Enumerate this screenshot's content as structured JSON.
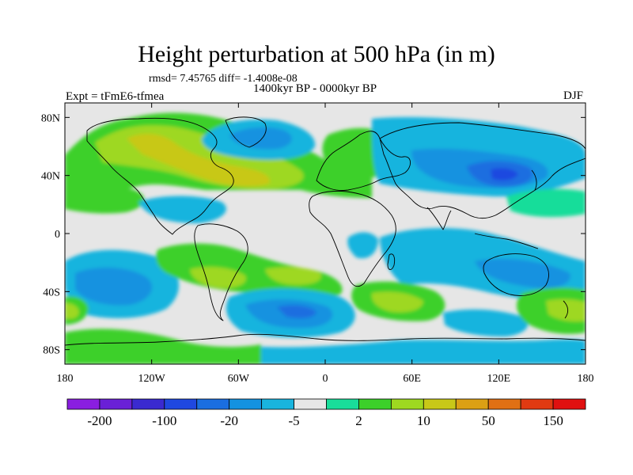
{
  "title": "Height perturbation at 500 hPa (in m)",
  "stats": "rmsd= 7.45765  diff= -1.4008e-08",
  "period": "1400kyr BP - 0000kyr BP",
  "experiment": "Expt = tFmE6-tfmea",
  "season": "DJF",
  "lat_labels": [
    "80N",
    "40N",
    "0",
    "40S",
    "80S"
  ],
  "lon_labels": [
    "180",
    "120W",
    "60W",
    "0",
    "60E",
    "120E",
    "180"
  ],
  "colorbar": {
    "colors": [
      "#8a1ee0",
      "#6a20d6",
      "#3a2ad0",
      "#1f48e0",
      "#1a6ee0",
      "#1492e0",
      "#19b4de",
      "#e6e6e6",
      "#19dd9a",
      "#3cd02a",
      "#9ed820",
      "#c8c818",
      "#dba014",
      "#e07014",
      "#e03a12",
      "#e01010"
    ],
    "labels": [
      "-200",
      "-100",
      "-20",
      "-5",
      "2",
      "10",
      "50",
      "150"
    ]
  },
  "palette": {
    "neutral": "#e6e6e6",
    "light_blue": "#19b4de",
    "mid_blue": "#1492e0",
    "blue": "#1a6ee0",
    "deep_blue": "#1f48e0",
    "teal": "#19dd9a",
    "green": "#3cd02a",
    "lime": "#9ed820",
    "olive": "#c8c818"
  }
}
